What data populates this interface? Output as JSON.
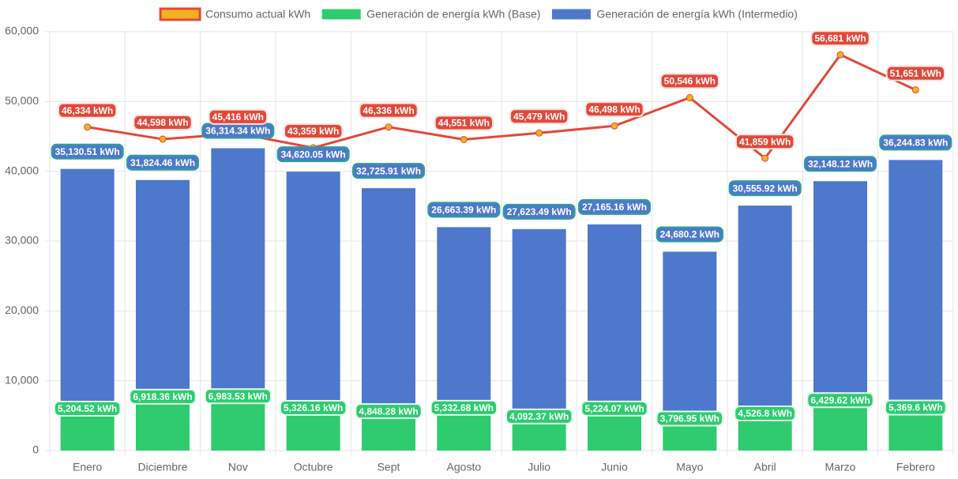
{
  "chart_data": {
    "type": "bar",
    "stacked": true,
    "grid": true,
    "categories": [
      "Enero",
      "Diciembre",
      "Nov",
      "Octubre",
      "Sept",
      "Agosto",
      "Julio",
      "Junio",
      "Mayo",
      "Abril",
      "Marzo",
      "Febrero"
    ],
    "ylim": [
      0,
      60000
    ],
    "yticks": [
      0,
      {
        "value": 10000,
        "label": "10,000"
      },
      {
        "value": 20000,
        "label": "20,000"
      },
      {
        "value": 30000,
        "label": "30,000"
      },
      {
        "value": 40000,
        "label": "40,000"
      },
      {
        "value": 50000,
        "label": "50,000"
      },
      {
        "value": 60000,
        "label": "60,000"
      }
    ],
    "series": [
      {
        "name": "Consumo actual kWh",
        "type": "line",
        "color": "#e2483a",
        "marker_color": "#f5b21f",
        "values": [
          46334,
          44598,
          45416,
          43359,
          46336,
          44551,
          45479,
          46498,
          50546,
          41859,
          56681,
          51651
        ],
        "value_labels": [
          "46,334 kWh",
          "44,598 kWh",
          "45,416 kWh",
          "43,359 kWh",
          "46,336 kWh",
          "44,551 kWh",
          "45,479 kWh",
          "46,498 kWh",
          "50,546 kWh",
          "41,859 kWh",
          "56,681 kWh",
          "51,651 kWh"
        ]
      },
      {
        "name": "Generación de energía kWh (Base)",
        "type": "bar",
        "color": "#2ecc6f",
        "values": [
          5204.52,
          6918.36,
          6983.53,
          5326.16,
          4848.28,
          5332.68,
          4092.37,
          5224.07,
          3796.95,
          4526.8,
          6429.62,
          5369.6
        ],
        "value_labels": [
          "5,204.52 kWh",
          "6,918.36 kWh",
          "6,983.53 kWh",
          "5,326.16 kWh",
          "4,848.28 kWh",
          "5,332.68 kWh",
          "4,092.37 kWh",
          "5,224.07 kWh",
          "3,796.95 kWh",
          "4,526.8 kWh",
          "6,429.62 kWh",
          "5,369.6 kWh"
        ]
      },
      {
        "name": "Generación de energía kWh (Intermedio)",
        "type": "bar",
        "color": "#4e78cb",
        "values": [
          35130.51,
          31824.46,
          36314.34,
          34620.05,
          32725.91,
          26663.39,
          27623.49,
          27165.16,
          24680.2,
          30555.92,
          32148.12,
          36244.83
        ],
        "value_labels": [
          "35,130.51 kWh",
          "31,824.46 kWh",
          "36,314.34 kWh",
          "34,620.05 kWh",
          "32,725.91 kWh",
          "26,663.39 kWh",
          "27,623.49 kWh",
          "27,165.16 kWh",
          "24,680.2 kWh",
          "30,555.92 kWh",
          "32,148.12 kWh",
          "36,244.83 kWh"
        ]
      }
    ]
  }
}
